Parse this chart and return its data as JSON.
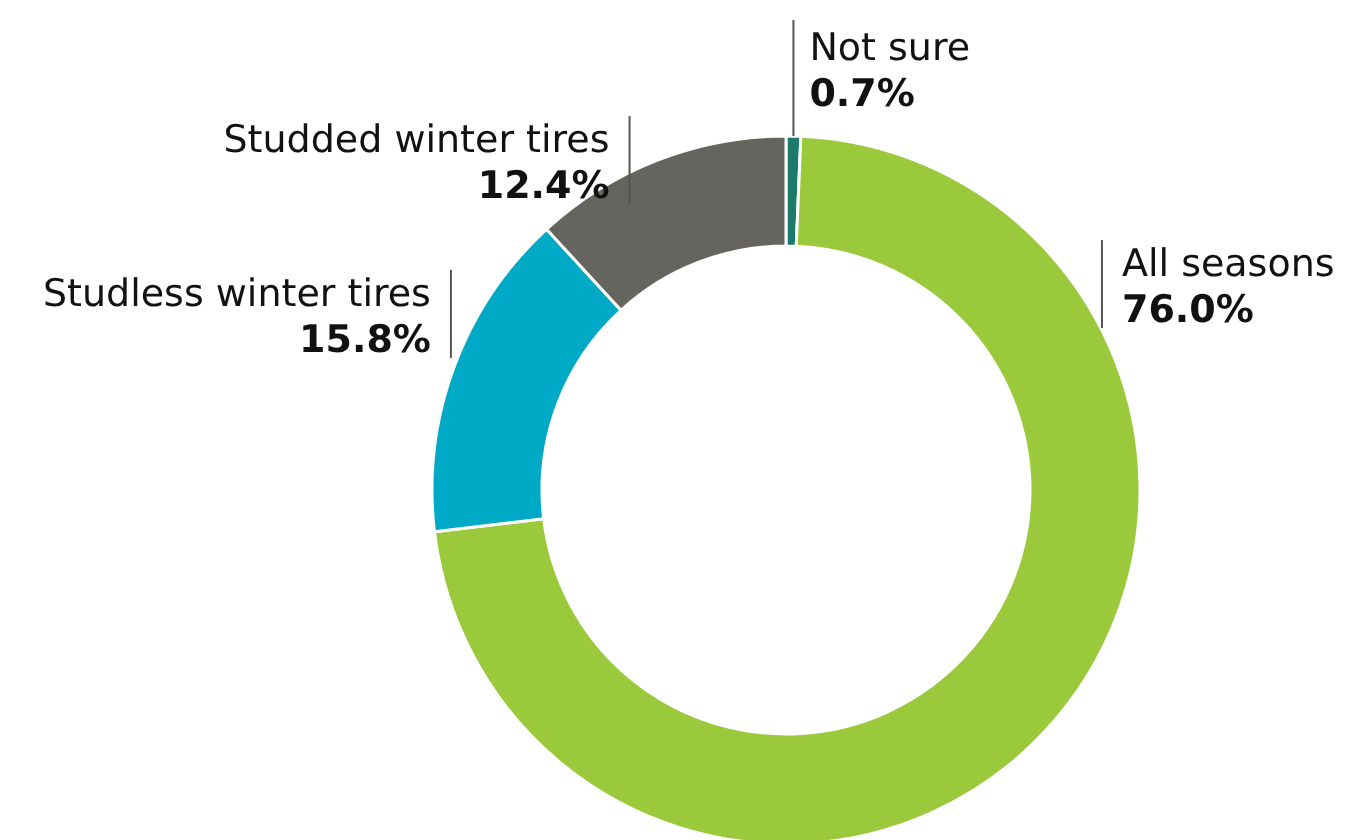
{
  "chart_data": {
    "type": "donut",
    "categories": [
      "Not sure",
      "All seasons",
      "Studless winter tires",
      "Studded winter tires"
    ],
    "values": [
      0.7,
      76.0,
      15.8,
      12.4
    ],
    "colors": [
      "#1b7a6b",
      "#9aca3c",
      "#00a9c6",
      "#66645e"
    ],
    "value_labels": [
      "0.7%",
      "76.0%",
      "15.8%",
      "12.4%"
    ]
  }
}
